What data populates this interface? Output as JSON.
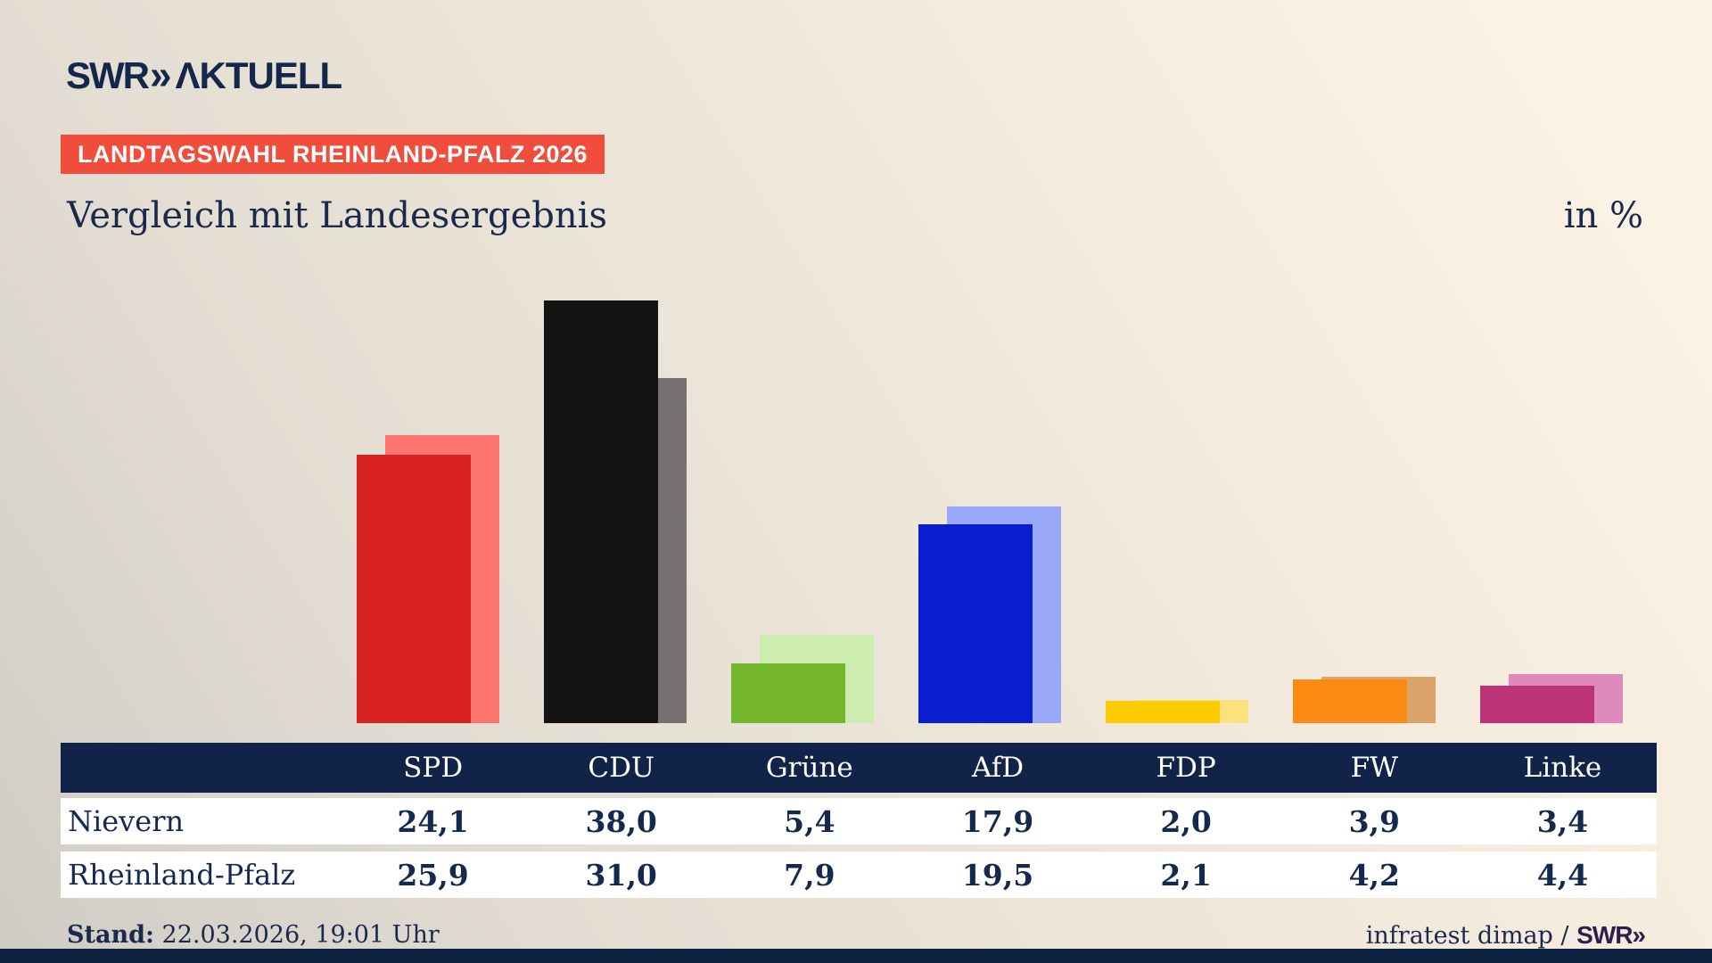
{
  "header": {
    "logo_swr": "SWR",
    "logo_chevrons": "»",
    "logo_aktuell": "ΛKTUELL",
    "badge": "LANDTAGSWAHL RHEINLAND-PFALZ 2026"
  },
  "title": {
    "text": "Vergleich mit Landesergebnis",
    "unit_label": "in %"
  },
  "chart_data": {
    "type": "bar",
    "categories": [
      "SPD",
      "CDU",
      "Grüne",
      "AfD",
      "FDP",
      "FW",
      "Linke"
    ],
    "series": [
      {
        "name": "Nievern",
        "values": [
          24.1,
          38.0,
          5.4,
          17.9,
          2.0,
          3.9,
          3.4
        ]
      },
      {
        "name": "Rheinland-Pfalz",
        "values": [
          25.9,
          31.0,
          7.9,
          19.5,
          2.1,
          4.2,
          4.4
        ]
      }
    ],
    "colors_front": [
      "#d82220",
      "#131313",
      "#74b72c",
      "#0a1ecd",
      "#fecb00",
      "#fb8a14",
      "#bc3377"
    ],
    "colors_back": [
      "#fc746c",
      "#747170",
      "#cdedb0",
      "#9aa8fa",
      "#fbe27c",
      "#daa46a",
      "#de8abc"
    ],
    "title": "Vergleich mit Landesergebnis",
    "ylabel": "in %",
    "ylim": [
      0,
      40
    ],
    "grid": false,
    "legend": "table-below",
    "note": "front bar = Nievern, offset lighter back bar = Rheinland-Pfalz"
  },
  "table": {
    "columns": [
      "SPD",
      "CDU",
      "Grüne",
      "AfD",
      "FDP",
      "FW",
      "Linke"
    ],
    "rows": [
      {
        "label": "Nievern",
        "values": [
          "24,1",
          "38,0",
          "5,4",
          "17,9",
          "2,0",
          "3,9",
          "3,4"
        ]
      },
      {
        "label": "Rheinland-Pfalz",
        "values": [
          "25,9",
          "31,0",
          "7,9",
          "19,5",
          "2,1",
          "4,2",
          "4,4"
        ]
      }
    ]
  },
  "footer": {
    "stand_label": "Stand:",
    "stand_value": " 22.03.2026, 19:01 Uhr",
    "source_text": "infratest dimap / ",
    "source_brand": "SWR»"
  },
  "colors": {
    "badge_bg": "#f14d3c",
    "navy_text": "#1b2a4c",
    "table_header_bg": "#112348",
    "bottom_bar": "#0c2040"
  }
}
